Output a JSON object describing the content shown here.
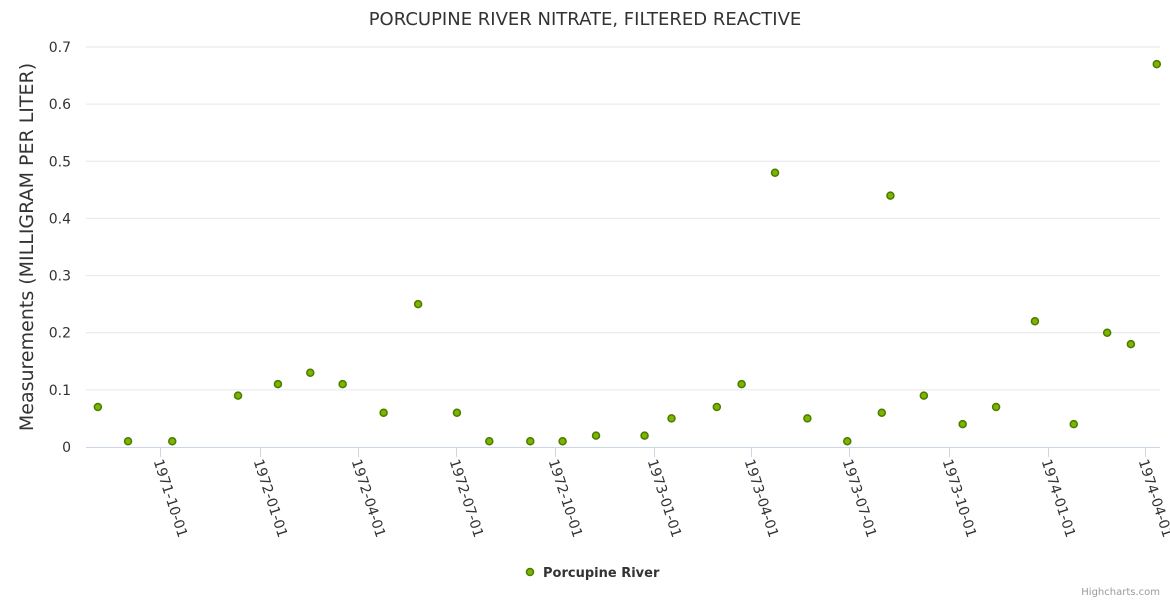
{
  "chart_data": {
    "type": "scatter",
    "title": "PORCUPINE RIVER NITRATE, FILTERED REACTIVE",
    "xlabel": "",
    "ylabel": "Measurements (MILLIGRAM PER LITER)",
    "ylim": [
      0,
      0.7
    ],
    "yticks": [
      "0",
      "0.1",
      "0.2",
      "0.3",
      "0.4",
      "0.5",
      "0.6",
      "0.7"
    ],
    "xlim": [
      "1971-07-24",
      "1974-04-15"
    ],
    "xticks": [
      "1971-10-01",
      "1972-01-01",
      "1972-04-01",
      "1972-07-01",
      "1972-10-01",
      "1973-01-01",
      "1973-04-01",
      "1973-07-01",
      "1973-10-01",
      "1974-01-01",
      "1974-04-01"
    ],
    "grid": true,
    "legend_position": "bottom-center",
    "series": [
      {
        "name": "Porcupine River",
        "color": "#7cb500",
        "points": [
          {
            "x": "1971-08-04",
            "y": 0.07
          },
          {
            "x": "1971-09-01",
            "y": 0.01
          },
          {
            "x": "1971-10-12",
            "y": 0.01
          },
          {
            "x": "1971-12-12",
            "y": 0.09
          },
          {
            "x": "1972-01-18",
            "y": 0.11
          },
          {
            "x": "1972-02-17",
            "y": 0.13
          },
          {
            "x": "1972-03-18",
            "y": 0.11
          },
          {
            "x": "1972-04-25",
            "y": 0.06
          },
          {
            "x": "1972-05-27",
            "y": 0.25
          },
          {
            "x": "1972-07-02",
            "y": 0.06
          },
          {
            "x": "1972-08-01",
            "y": 0.01
          },
          {
            "x": "1972-09-08",
            "y": 0.01
          },
          {
            "x": "1972-10-08",
            "y": 0.01
          },
          {
            "x": "1972-11-08",
            "y": 0.02
          },
          {
            "x": "1972-12-23",
            "y": 0.02
          },
          {
            "x": "1973-01-17",
            "y": 0.05
          },
          {
            "x": "1973-02-28",
            "y": 0.07
          },
          {
            "x": "1973-03-23",
            "y": 0.11
          },
          {
            "x": "1973-04-23",
            "y": 0.48
          },
          {
            "x": "1973-05-23",
            "y": 0.05
          },
          {
            "x": "1973-06-29",
            "y": 0.01
          },
          {
            "x": "1973-07-31",
            "y": 0.06
          },
          {
            "x": "1973-08-08",
            "y": 0.44
          },
          {
            "x": "1973-09-08",
            "y": 0.09
          },
          {
            "x": "1973-10-14",
            "y": 0.04
          },
          {
            "x": "1973-11-14",
            "y": 0.07
          },
          {
            "x": "1973-12-20",
            "y": 0.22
          },
          {
            "x": "1974-01-25",
            "y": 0.04
          },
          {
            "x": "1974-02-25",
            "y": 0.2
          },
          {
            "x": "1974-03-19",
            "y": 0.18
          },
          {
            "x": "1974-04-12",
            "y": 0.67
          }
        ]
      }
    ]
  },
  "legend": {
    "label": "Porcupine River"
  },
  "credits": {
    "label": "Highcharts.com"
  }
}
